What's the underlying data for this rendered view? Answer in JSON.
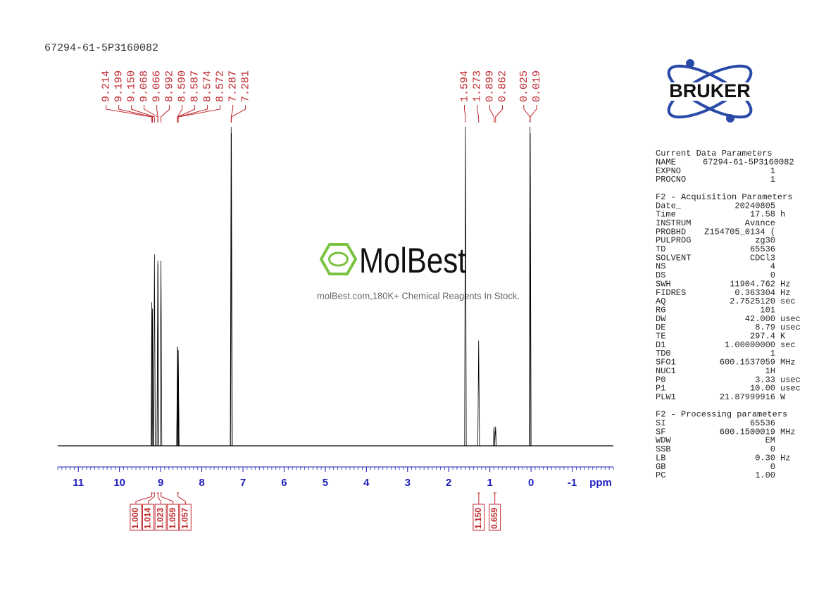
{
  "chart_data": {
    "type": "spectrum",
    "title": "67294-61-5P3160082",
    "xlabel": "ppm",
    "xlim": [
      11.5,
      -2
    ],
    "xticks": [
      11,
      10,
      9,
      8,
      7,
      6,
      5,
      4,
      3,
      2,
      1,
      0,
      -1
    ],
    "xminor_step": 0.1,
    "ylim": [
      0,
      100
    ],
    "peak_color": "#000000",
    "label_color": "#c0282d",
    "axis_color": "#1f1fbf",
    "peaks": {
      "x": [
        9.214,
        9.199,
        9.15,
        9.068,
        9.066,
        8.992,
        8.59,
        8.587,
        8.574,
        8.572,
        7.287,
        7.281,
        1.594,
        1.273,
        0.899,
        0.862,
        0.025,
        0.019
      ],
      "value_labels": [
        "9.214",
        "9.199",
        "9.150",
        "9.068",
        "9.066",
        "8.992",
        "8.590",
        "8.587",
        "8.574",
        "8.572",
        "7.287",
        "7.281",
        "1.594",
        "1.273",
        "0.899",
        "0.862",
        "0.025",
        "0.019"
      ],
      "values": [
        45,
        43,
        60,
        58,
        57,
        58,
        31,
        31,
        30,
        30,
        100,
        98,
        100,
        33,
        6,
        6,
        100,
        98
      ]
    },
    "integrals": {
      "ranges": [
        [
          9.24,
          9.19
        ],
        [
          9.17,
          9.13
        ],
        [
          9.09,
          9.04
        ],
        [
          9.01,
          8.97
        ],
        [
          8.61,
          8.55
        ],
        [
          1.3,
          1.24
        ],
        [
          0.92,
          0.84
        ]
      ],
      "values": [
        1.0,
        1.014,
        1.023,
        1.059,
        1.057,
        1.15,
        0.659
      ],
      "value_labels": [
        "1.000",
        "1.014",
        "1.023",
        "1.059",
        "1.057",
        "1.150",
        "0.659"
      ]
    }
  },
  "logo": {
    "text": "BRUKER"
  },
  "watermark": {
    "brand": "MolBest",
    "tagline": "molBest.com,180K+ Chemical Reagents In Stock."
  },
  "parameters": [
    {
      "title": "Current Data Parameters",
      "rows": [
        [
          "NAME",
          "67294-61-5P3160082"
        ],
        [
          "EXPNO",
          "1"
        ],
        [
          "PROCNO",
          "1"
        ]
      ]
    },
    {
      "title": "F2 - Acquisition Parameters",
      "rows": [
        [
          "Date_",
          "20240805"
        ],
        [
          "Time",
          "17.58",
          "h"
        ],
        [
          "INSTRUM",
          "Avance"
        ],
        [
          "PROBHD",
          "Z154705_0134 ("
        ],
        [
          "PULPROG",
          "zg30"
        ],
        [
          "TD",
          "65536"
        ],
        [
          "SOLVENT",
          "CDCl3"
        ],
        [
          "NS",
          "4"
        ],
        [
          "DS",
          "0"
        ],
        [
          "SWH",
          "11904.762",
          "Hz"
        ],
        [
          "FIDRES",
          "0.363304",
          "Hz"
        ],
        [
          "AQ",
          "2.7525120",
          "sec"
        ],
        [
          "RG",
          "101"
        ],
        [
          "DW",
          "42.000",
          "usec"
        ],
        [
          "DE",
          "8.79",
          "usec"
        ],
        [
          "TE",
          "297.4",
          "K"
        ],
        [
          "D1",
          "1.00000000",
          "sec"
        ],
        [
          "TD0",
          "1"
        ],
        [
          "SFO1",
          "600.1537059",
          "MHz"
        ],
        [
          "NUC1",
          "1H"
        ],
        [
          "P0",
          "3.33",
          "usec"
        ],
        [
          "P1",
          "10.00",
          "usec"
        ],
        [
          "PLW1",
          "21.87999916",
          "W"
        ]
      ]
    },
    {
      "title": "F2 - Processing parameters",
      "rows": [
        [
          "SI",
          "65536"
        ],
        [
          "SF",
          "600.1500019",
          "MHz"
        ],
        [
          "WDW",
          "EM"
        ],
        [
          "SSB",
          "0"
        ],
        [
          "LB",
          "0.30",
          "Hz"
        ],
        [
          "GB",
          "0"
        ],
        [
          "PC",
          "1.00"
        ]
      ]
    }
  ]
}
